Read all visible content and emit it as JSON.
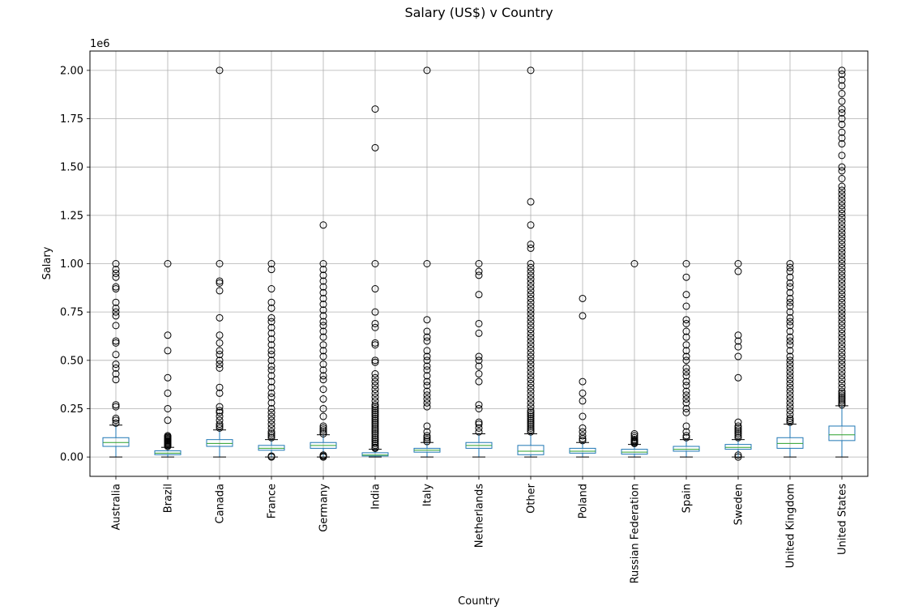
{
  "chart_data": {
    "type": "box",
    "title": "Salary (US$) v Country",
    "xlabel": "Country",
    "ylabel": "Salary",
    "y_offset_label": "1e6",
    "ylim": [
      -0.1,
      2.1
    ],
    "y_ticks": [
      0.0,
      0.25,
      0.5,
      0.75,
      1.0,
      1.25,
      1.5,
      1.75,
      2.0
    ],
    "y_tick_labels": [
      "0.00",
      "0.25",
      "0.50",
      "0.75",
      "1.00",
      "1.25",
      "1.50",
      "1.75",
      "2.00"
    ],
    "grid": true,
    "categories": [
      "Australia",
      "Brazil",
      "Canada",
      "France",
      "Germany",
      "India",
      "Italy",
      "Netherlands",
      "Other",
      "Poland",
      "Russian Federation",
      "Spain",
      "Sweden",
      "United Kingdom",
      "United States"
    ],
    "boxes": [
      {
        "min": 0.0,
        "q1": 0.055,
        "median": 0.075,
        "q3": 0.1,
        "max": 0.165,
        "outliers": [
          0.175,
          0.19,
          0.2,
          0.26,
          0.27,
          0.4,
          0.43,
          0.46,
          0.48,
          0.53,
          0.59,
          0.6,
          0.68,
          0.73,
          0.75,
          0.77,
          0.8,
          0.87,
          0.88,
          0.93,
          0.95,
          0.97,
          1.0
        ]
      },
      {
        "min": 0.0,
        "q1": 0.012,
        "median": 0.02,
        "q3": 0.032,
        "max": 0.05,
        "outliers": [
          0.055,
          0.06,
          0.065,
          0.07,
          0.075,
          0.08,
          0.085,
          0.09,
          0.095,
          0.1,
          0.105,
          0.11,
          0.19,
          0.25,
          0.33,
          0.41,
          0.55,
          0.63,
          1.0
        ]
      },
      {
        "min": 0.0,
        "q1": 0.055,
        "median": 0.07,
        "q3": 0.09,
        "max": 0.14,
        "outliers": [
          0.15,
          0.16,
          0.17,
          0.19,
          0.21,
          0.23,
          0.24,
          0.26,
          0.33,
          0.36,
          0.46,
          0.48,
          0.5,
          0.53,
          0.55,
          0.59,
          0.63,
          0.72,
          0.86,
          0.9,
          0.91,
          1.0,
          2.0
        ]
      },
      {
        "min": 0.0,
        "q1": 0.035,
        "median": 0.045,
        "q3": 0.06,
        "max": 0.09,
        "outliers": [
          0.0,
          0.005,
          0.1,
          0.11,
          0.12,
          0.13,
          0.15,
          0.17,
          0.19,
          0.21,
          0.23,
          0.25,
          0.28,
          0.31,
          0.33,
          0.36,
          0.39,
          0.42,
          0.45,
          0.47,
          0.5,
          0.53,
          0.55,
          0.58,
          0.61,
          0.64,
          0.67,
          0.7,
          0.72,
          0.77,
          0.8,
          0.87,
          0.97,
          1.0
        ]
      },
      {
        "min": 0.0,
        "q1": 0.045,
        "median": 0.06,
        "q3": 0.075,
        "max": 0.115,
        "outliers": [
          0.0,
          0.005,
          0.01,
          0.12,
          0.13,
          0.14,
          0.15,
          0.16,
          0.21,
          0.25,
          0.3,
          0.35,
          0.4,
          0.42,
          0.45,
          0.48,
          0.52,
          0.55,
          0.58,
          0.62,
          0.65,
          0.68,
          0.7,
          0.73,
          0.76,
          0.79,
          0.82,
          0.85,
          0.88,
          0.91,
          0.94,
          0.97,
          1.0,
          1.2
        ]
      },
      {
        "min": 0.0,
        "q1": 0.005,
        "median": 0.01,
        "q3": 0.022,
        "max": 0.04,
        "outliers": [
          0.045,
          0.05,
          0.06,
          0.07,
          0.08,
          0.09,
          0.1,
          0.11,
          0.12,
          0.13,
          0.14,
          0.15,
          0.16,
          0.17,
          0.18,
          0.19,
          0.2,
          0.21,
          0.22,
          0.23,
          0.24,
          0.25,
          0.26,
          0.27,
          0.29,
          0.31,
          0.33,
          0.35,
          0.37,
          0.39,
          0.41,
          0.43,
          0.49,
          0.5,
          0.58,
          0.59,
          0.67,
          0.69,
          0.75,
          0.87,
          1.0,
          1.6,
          1.8
        ]
      },
      {
        "min": 0.0,
        "q1": 0.025,
        "median": 0.035,
        "q3": 0.045,
        "max": 0.075,
        "outliers": [
          0.08,
          0.09,
          0.1,
          0.11,
          0.13,
          0.16,
          0.26,
          0.28,
          0.3,
          0.32,
          0.34,
          0.37,
          0.39,
          0.42,
          0.45,
          0.47,
          0.5,
          0.52,
          0.55,
          0.6,
          0.62,
          0.65,
          0.71,
          1.0,
          2.0
        ]
      },
      {
        "min": 0.0,
        "q1": 0.045,
        "median": 0.06,
        "q3": 0.075,
        "max": 0.12,
        "outliers": [
          0.13,
          0.15,
          0.17,
          0.18,
          0.25,
          0.27,
          0.39,
          0.43,
          0.47,
          0.5,
          0.52,
          0.64,
          0.69,
          0.84,
          0.94,
          0.96,
          1.0
        ]
      },
      {
        "min": 0.0,
        "q1": 0.012,
        "median": 0.03,
        "q3": 0.06,
        "max": 0.12,
        "outliers": [
          0.13,
          0.14,
          0.15,
          0.16,
          0.17,
          0.18,
          0.19,
          0.2,
          0.21,
          0.22,
          0.23,
          0.24,
          0.26,
          0.28,
          0.3,
          0.32,
          0.34,
          0.36,
          0.38,
          0.4,
          0.42,
          0.44,
          0.46,
          0.48,
          0.5,
          0.52,
          0.54,
          0.56,
          0.58,
          0.6,
          0.62,
          0.64,
          0.66,
          0.68,
          0.7,
          0.72,
          0.74,
          0.76,
          0.78,
          0.8,
          0.82,
          0.84,
          0.86,
          0.88,
          0.9,
          0.92,
          0.94,
          0.96,
          0.98,
          1.0,
          1.08,
          1.1,
          1.2,
          1.32,
          2.0
        ]
      },
      {
        "min": 0.0,
        "q1": 0.02,
        "median": 0.03,
        "q3": 0.045,
        "max": 0.075,
        "outliers": [
          0.085,
          0.095,
          0.11,
          0.13,
          0.15,
          0.21,
          0.29,
          0.33,
          0.39,
          0.73,
          0.82
        ]
      },
      {
        "min": 0.0,
        "q1": 0.015,
        "median": 0.025,
        "q3": 0.04,
        "max": 0.065,
        "outliers": [
          0.07,
          0.075,
          0.08,
          0.085,
          0.09,
          0.1,
          0.11,
          0.12,
          1.0
        ]
      },
      {
        "min": 0.0,
        "q1": 0.03,
        "median": 0.04,
        "q3": 0.055,
        "max": 0.09,
        "outliers": [
          0.1,
          0.11,
          0.13,
          0.16,
          0.23,
          0.25,
          0.28,
          0.3,
          0.32,
          0.34,
          0.37,
          0.39,
          0.42,
          0.44,
          0.46,
          0.5,
          0.52,
          0.55,
          0.58,
          0.62,
          0.65,
          0.69,
          0.71,
          0.78,
          0.84,
          0.93,
          1.0
        ]
      },
      {
        "min": 0.0,
        "q1": 0.04,
        "median": 0.05,
        "q3": 0.065,
        "max": 0.09,
        "outliers": [
          0.0,
          0.01,
          0.1,
          0.11,
          0.12,
          0.13,
          0.14,
          0.15,
          0.16,
          0.18,
          0.41,
          0.52,
          0.57,
          0.6,
          0.63,
          0.96,
          1.0
        ]
      },
      {
        "min": 0.0,
        "q1": 0.045,
        "median": 0.07,
        "q3": 0.1,
        "max": 0.17,
        "outliers": [
          0.18,
          0.19,
          0.2,
          0.22,
          0.24,
          0.26,
          0.28,
          0.3,
          0.32,
          0.34,
          0.36,
          0.38,
          0.4,
          0.42,
          0.44,
          0.46,
          0.48,
          0.5,
          0.52,
          0.55,
          0.58,
          0.6,
          0.62,
          0.65,
          0.68,
          0.7,
          0.72,
          0.75,
          0.78,
          0.8,
          0.82,
          0.85,
          0.88,
          0.9,
          0.93,
          0.96,
          0.98,
          1.0
        ]
      },
      {
        "min": 0.0,
        "q1": 0.085,
        "median": 0.115,
        "q3": 0.16,
        "max": 0.265,
        "outliers": [
          0.27,
          0.28,
          0.29,
          0.3,
          0.31,
          0.32,
          0.33,
          0.34,
          0.36,
          0.38,
          0.4,
          0.42,
          0.44,
          0.46,
          0.48,
          0.5,
          0.52,
          0.54,
          0.56,
          0.58,
          0.6,
          0.62,
          0.64,
          0.66,
          0.68,
          0.7,
          0.72,
          0.74,
          0.76,
          0.78,
          0.8,
          0.82,
          0.84,
          0.86,
          0.88,
          0.9,
          0.92,
          0.94,
          0.96,
          0.98,
          1.0,
          1.02,
          1.04,
          1.06,
          1.08,
          1.1,
          1.12,
          1.14,
          1.16,
          1.18,
          1.2,
          1.22,
          1.24,
          1.26,
          1.28,
          1.3,
          1.32,
          1.34,
          1.36,
          1.38,
          1.4,
          1.44,
          1.48,
          1.5,
          1.56,
          1.62,
          1.65,
          1.68,
          1.72,
          1.75,
          1.78,
          1.8,
          1.84,
          1.88,
          1.92,
          1.95,
          1.98,
          2.0
        ]
      }
    ]
  }
}
